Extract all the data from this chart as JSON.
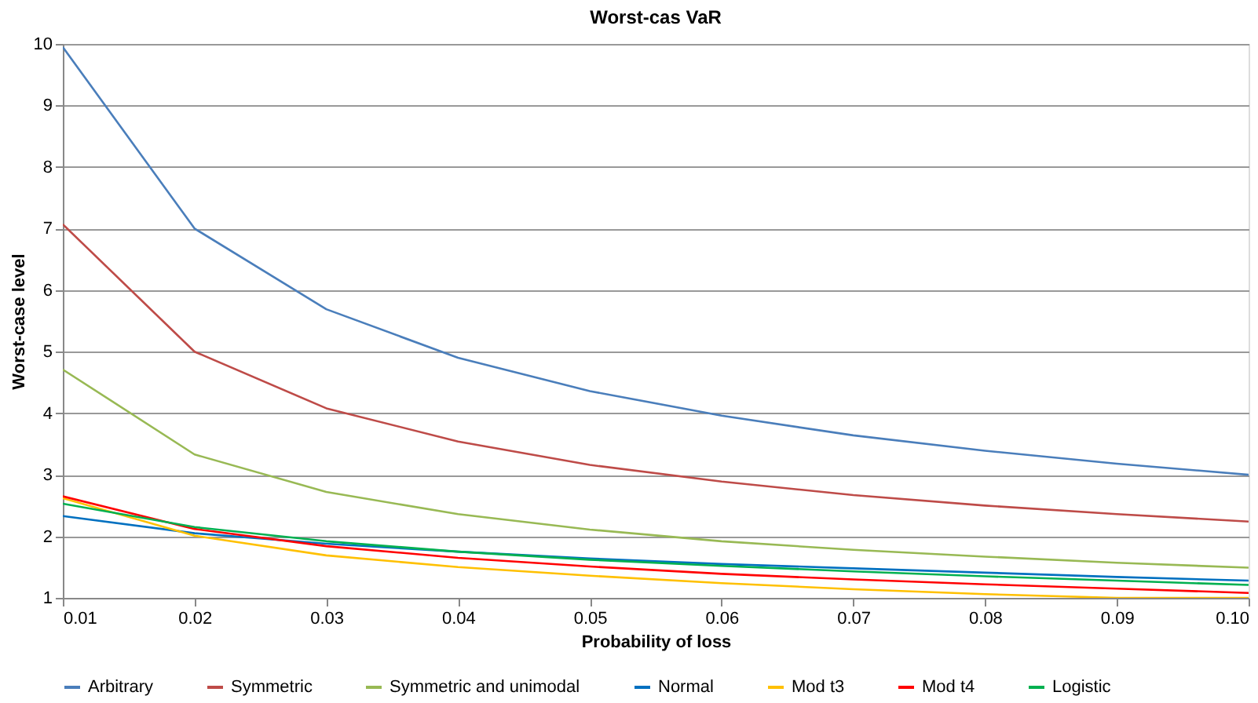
{
  "chart_data": {
    "type": "line",
    "title": "Worst-cas VaR",
    "xlabel": "Probability of loss",
    "ylabel": "Worst-case level",
    "x": [
      0.01,
      0.02,
      0.03,
      0.04,
      0.05,
      0.06,
      0.07,
      0.08,
      0.09,
      0.1
    ],
    "xlim": [
      0.01,
      0.1
    ],
    "xticks": [
      {
        "value": 0.01,
        "label": "0.01"
      },
      {
        "value": 0.02,
        "label": "0.02"
      },
      {
        "value": 0.03,
        "label": "0.03"
      },
      {
        "value": 0.04,
        "label": "0.04"
      },
      {
        "value": 0.05,
        "label": "0.05"
      },
      {
        "value": 0.06,
        "label": "0.06"
      },
      {
        "value": 0.07,
        "label": "0.07"
      },
      {
        "value": 0.08,
        "label": "0.08"
      },
      {
        "value": 0.09,
        "label": "0.09"
      },
      {
        "value": 0.1,
        "label": "0.10"
      }
    ],
    "ylim": [
      1,
      10
    ],
    "yticks": [
      1,
      2,
      3,
      4,
      5,
      6,
      7,
      8,
      9,
      10
    ],
    "grid": "y",
    "legend": "bottom",
    "marker": "none",
    "line_style": "solid",
    "series": [
      {
        "name": "Arbitrary",
        "color": "#4a7ebb",
        "values": [
          9.95,
          7.0,
          5.69,
          4.9,
          4.36,
          3.96,
          3.64,
          3.39,
          3.18,
          3.0
        ]
      },
      {
        "name": "Symmetric",
        "color": "#be4b48",
        "values": [
          7.07,
          5.0,
          4.08,
          3.54,
          3.16,
          2.89,
          2.67,
          2.5,
          2.36,
          2.24
        ]
      },
      {
        "name": "Symmetric and unimodal",
        "color": "#98b954",
        "values": [
          4.71,
          3.33,
          2.72,
          2.36,
          2.11,
          1.92,
          1.78,
          1.67,
          1.57,
          1.49
        ]
      },
      {
        "name": "Normal",
        "color": "#0070c0",
        "values": [
          2.33,
          2.05,
          1.88,
          1.75,
          1.64,
          1.55,
          1.48,
          1.41,
          1.34,
          1.28
        ]
      },
      {
        "name": "Mod t3",
        "color": "#ffc000",
        "values": [
          2.62,
          2.01,
          1.69,
          1.5,
          1.36,
          1.24,
          1.14,
          1.06,
          1.0,
          1.0
        ]
      },
      {
        "name": "Mod t4",
        "color": "#ff0000",
        "values": [
          2.65,
          2.12,
          1.84,
          1.65,
          1.51,
          1.39,
          1.3,
          1.22,
          1.15,
          1.08
        ]
      },
      {
        "name": "Logistic",
        "color": "#00b050",
        "values": [
          2.53,
          2.15,
          1.92,
          1.75,
          1.62,
          1.52,
          1.43,
          1.35,
          1.28,
          1.21
        ]
      }
    ]
  }
}
